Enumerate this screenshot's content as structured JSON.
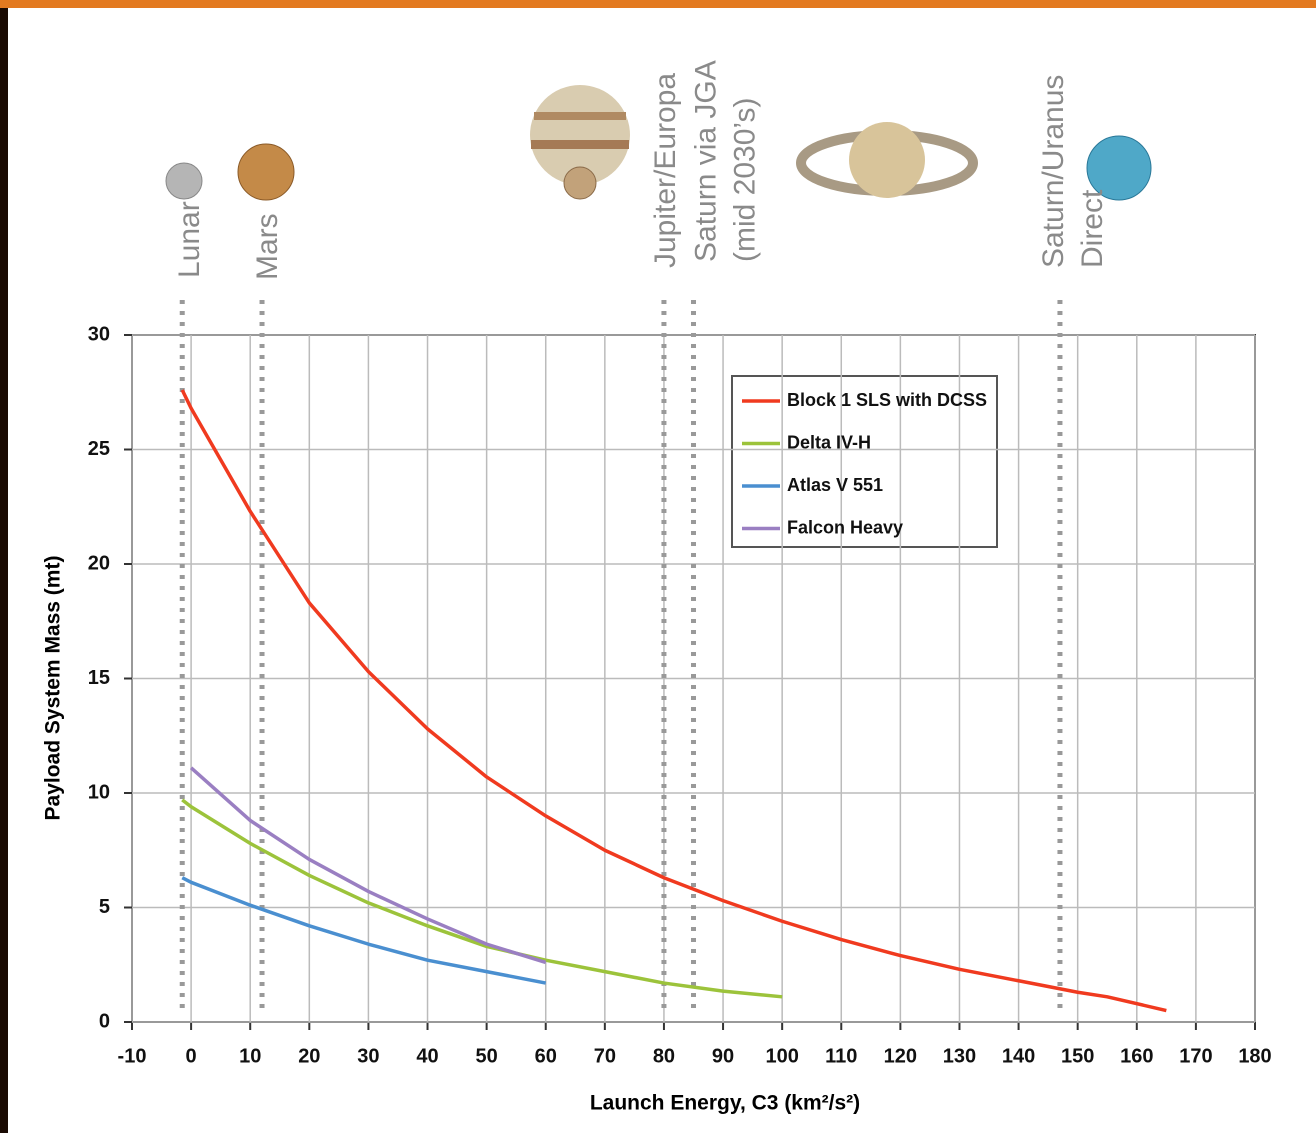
{
  "chart_data": {
    "type": "line",
    "xlabel": "Launch Energy, C3 (km²/s²)",
    "ylabel": "Payload System Mass (mt)",
    "xlim": [
      -10,
      180
    ],
    "xticks": [
      -10,
      0,
      10,
      20,
      30,
      40,
      50,
      60,
      70,
      80,
      90,
      100,
      110,
      120,
      130,
      140,
      150,
      160,
      170,
      180
    ],
    "ylim": [
      0,
      30
    ],
    "yticks": [
      0,
      5,
      10,
      15,
      20,
      25,
      30
    ],
    "grid": true,
    "references": [
      {
        "x": -1.5,
        "lines": [
          "Lunar"
        ]
      },
      {
        "x": 12,
        "lines": [
          "Mars"
        ]
      },
      {
        "x": 80,
        "lines": [
          "Jupiter/Europa"
        ]
      },
      {
        "x": 85,
        "lines": [
          "Saturn via JGA",
          "(mid 2030’s)"
        ]
      },
      {
        "x": 147,
        "lines": [
          "Saturn/Uranus",
          "Direct"
        ]
      }
    ],
    "series": [
      {
        "name": "Block 1 SLS with DCSS",
        "color": "#f03a1f",
        "x": [
          -1.5,
          0,
          10,
          20,
          30,
          40,
          50,
          60,
          70,
          80,
          90,
          100,
          110,
          120,
          130,
          140,
          150,
          155,
          165
        ],
        "values": [
          27.6,
          26.8,
          22.3,
          18.3,
          15.3,
          12.8,
          10.7,
          9.0,
          7.5,
          6.3,
          5.3,
          4.4,
          3.6,
          2.9,
          2.3,
          1.8,
          1.3,
          1.1,
          0.5
        ]
      },
      {
        "name": "Delta IV-H",
        "color": "#9cc33b",
        "x": [
          -1.5,
          0,
          10,
          20,
          30,
          40,
          50,
          60,
          70,
          80,
          90,
          100
        ],
        "values": [
          9.7,
          9.4,
          7.8,
          6.4,
          5.2,
          4.2,
          3.3,
          2.7,
          2.2,
          1.7,
          1.35,
          1.1
        ]
      },
      {
        "name": "Atlas V 551",
        "color": "#4a8fd0",
        "x": [
          -1.5,
          0,
          10,
          20,
          30,
          40,
          50,
          60
        ],
        "values": [
          6.3,
          6.1,
          5.1,
          4.2,
          3.4,
          2.7,
          2.2,
          1.7
        ]
      },
      {
        "name": "Falcon Heavy",
        "color": "#9a7fc2",
        "x": [
          0,
          10,
          20,
          30,
          40,
          50,
          60
        ],
        "values": [
          11.1,
          8.8,
          7.1,
          5.7,
          4.5,
          3.4,
          2.6
        ]
      }
    ]
  }
}
